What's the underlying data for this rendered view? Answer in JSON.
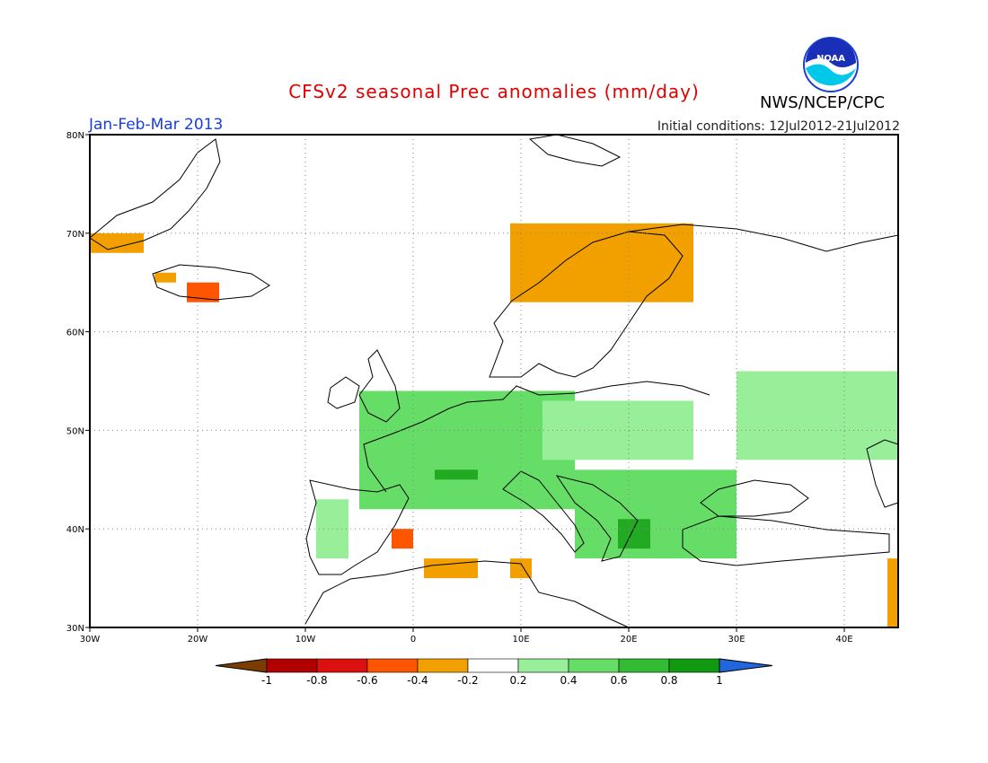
{
  "title": "CFSv2 seasonal Prec anomalies (mm/day)",
  "agency": "NWS/NCEP/CPC",
  "season": "Jan-Feb-Mar 2013",
  "initial_conditions": "Initial conditions: 12Jul2012-21Jul2012",
  "logo_text": "NOAA",
  "map": {
    "lon_range": [
      -30,
      45
    ],
    "lat_range": [
      30,
      80
    ],
    "lon_ticks": [
      {
        "value": -30,
        "label": "30W"
      },
      {
        "value": -20,
        "label": "20W"
      },
      {
        "value": -10,
        "label": "10W"
      },
      {
        "value": 0,
        "label": "0"
      },
      {
        "value": 10,
        "label": "10E"
      },
      {
        "value": 20,
        "label": "20E"
      },
      {
        "value": 30,
        "label": "30E"
      },
      {
        "value": 40,
        "label": "40E"
      }
    ],
    "lat_ticks": [
      {
        "value": 30,
        "label": "30N"
      },
      {
        "value": 40,
        "label": "40N"
      },
      {
        "value": 50,
        "label": "50N"
      },
      {
        "value": 60,
        "label": "60N"
      },
      {
        "value": 70,
        "label": "70N"
      },
      {
        "value": 80,
        "label": "80N"
      }
    ],
    "grid": "dotted",
    "regions": [
      {
        "name": "Greenland coast",
        "level": -0.3,
        "color": "#f2a000",
        "lon": [
          -30,
          -25
        ],
        "lat": [
          68,
          70
        ]
      },
      {
        "name": "Iceland west",
        "level": -0.3,
        "color": "#f2a000",
        "lon": [
          -24,
          -22
        ],
        "lat": [
          65,
          66
        ]
      },
      {
        "name": "Iceland south",
        "level": -0.5,
        "color": "#ff5500",
        "lon": [
          -21,
          -18
        ],
        "lat": [
          63,
          65
        ]
      },
      {
        "name": "Norway coast",
        "level": -0.3,
        "color": "#f2a000",
        "lon": [
          9,
          26
        ],
        "lat": [
          63,
          71
        ]
      },
      {
        "name": "Western Europe",
        "level": 0.4,
        "color": "#66dd66",
        "lon": [
          -5,
          15
        ],
        "lat": [
          42,
          54
        ]
      },
      {
        "name": "Central France",
        "level": 0.7,
        "color": "#22aa22",
        "lon": [
          2,
          6
        ],
        "lat": [
          45,
          46
        ]
      },
      {
        "name": "Balkans",
        "level": 0.4,
        "color": "#66dd66",
        "lon": [
          15,
          30
        ],
        "lat": [
          37,
          46
        ]
      },
      {
        "name": "Greece",
        "level": 0.7,
        "color": "#22aa22",
        "lon": [
          19,
          22
        ],
        "lat": [
          38,
          41
        ]
      },
      {
        "name": "Western Russia",
        "level": 0.3,
        "color": "#99ee99",
        "lon": [
          30,
          45
        ],
        "lat": [
          47,
          56
        ]
      },
      {
        "name": "Central Europe",
        "level": 0.3,
        "color": "#99ee99",
        "lon": [
          12,
          26
        ],
        "lat": [
          47,
          53
        ]
      },
      {
        "name": "Portugal",
        "level": 0.3,
        "color": "#99ee99",
        "lon": [
          -9,
          -6
        ],
        "lat": [
          37,
          43
        ]
      },
      {
        "name": "SE Spain",
        "level": -0.5,
        "color": "#ff5500",
        "lon": [
          -2,
          0
        ],
        "lat": [
          38,
          40
        ]
      },
      {
        "name": "Algeria coast",
        "level": -0.3,
        "color": "#f2a000",
        "lon": [
          1,
          6
        ],
        "lat": [
          35,
          37
        ]
      },
      {
        "name": "Tunisia",
        "level": -0.3,
        "color": "#f2a000",
        "lon": [
          9,
          11
        ],
        "lat": [
          35,
          37
        ]
      },
      {
        "name": "Turkey east",
        "level": -0.3,
        "color": "#f2a000",
        "lon": [
          44,
          45
        ],
        "lat": [
          30,
          37
        ]
      }
    ]
  },
  "colorbar": {
    "labels": [
      "-1",
      "-0.8",
      "-0.6",
      "-0.4",
      "-0.2",
      "0.2",
      "0.4",
      "0.6",
      "0.8",
      "1"
    ],
    "colors": [
      "#7a3c00",
      "#b00000",
      "#dd1010",
      "#ff5500",
      "#f2a000",
      "#ffffff",
      "#99ee99",
      "#66dd66",
      "#33bb33",
      "#119911",
      "#2266dd"
    ]
  }
}
